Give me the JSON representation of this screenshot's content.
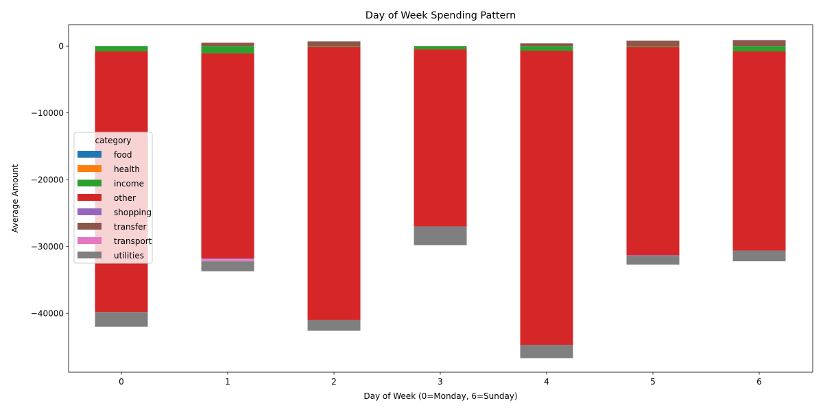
{
  "chart_data": {
    "type": "bar",
    "stacked": true,
    "title": "Day of Week Spending Pattern",
    "xlabel": "Day of Week (0=Monday, 6=Sunday)",
    "ylabel": "Average Amount",
    "categories": [
      "0",
      "1",
      "2",
      "3",
      "4",
      "5",
      "6"
    ],
    "ylim": [
      -48800,
      3200
    ],
    "yticks": [
      0,
      -10000,
      -20000,
      -30000,
      -40000
    ],
    "ytick_labels": [
      "0",
      "−10000",
      "−20000",
      "−30000",
      "−40000"
    ],
    "grid": false,
    "legend": {
      "title": "category",
      "placement": "center-left"
    },
    "series": [
      {
        "name": "food",
        "color": "#1f77b4",
        "values": [
          0,
          0,
          0,
          0,
          0,
          0,
          0
        ]
      },
      {
        "name": "health",
        "color": "#ff7f0e",
        "values": [
          0,
          0,
          0,
          0,
          0,
          0,
          0
        ]
      },
      {
        "name": "income",
        "color": "#2ca02c",
        "values": [
          -800,
          -1100,
          -100,
          -500,
          -700,
          -100,
          -800
        ]
      },
      {
        "name": "other",
        "color": "#d62728",
        "values": [
          -39000,
          -30700,
          -40900,
          -26500,
          -44000,
          -31200,
          -29800
        ]
      },
      {
        "name": "shopping",
        "color": "#9467bd",
        "values": [
          0,
          -100,
          0,
          0,
          0,
          -100,
          0
        ]
      },
      {
        "name": "transfer",
        "color": "#8c564b",
        "values": [
          0,
          500,
          700,
          0,
          400,
          800,
          900
        ]
      },
      {
        "name": "transport",
        "color": "#e377c2",
        "values": [
          0,
          -300,
          0,
          0,
          0,
          0,
          0
        ]
      },
      {
        "name": "utilities",
        "color": "#7f7f7f",
        "values": [
          -2200,
          -1500,
          -1600,
          -2800,
          -2000,
          -1300,
          -1600
        ]
      }
    ]
  }
}
